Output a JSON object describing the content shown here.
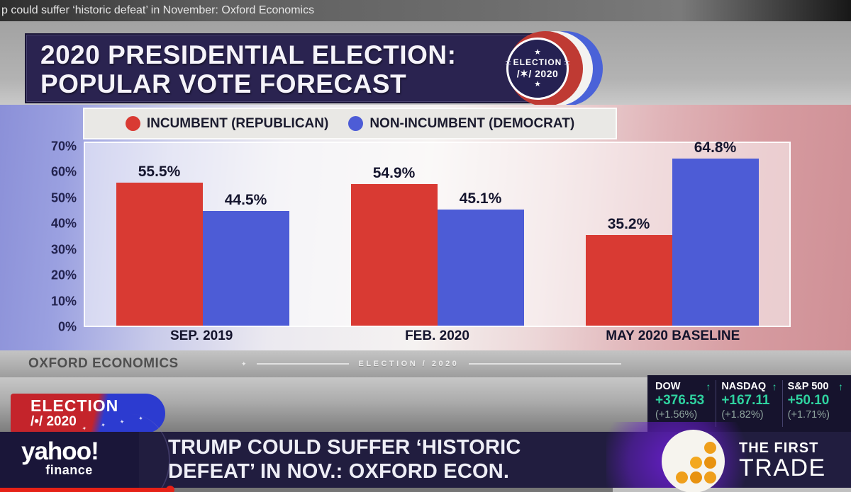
{
  "video": {
    "title_bar_text": "p could suffer ‘historic defeat’ in November: Oxford Economics",
    "progress": {
      "played_pct": 20,
      "unbuffered_right_pct": 28
    }
  },
  "header": {
    "title_line1": "2020 PRESIDENTIAL ELECTION:",
    "title_line2": "POPULAR VOTE FORECAST",
    "badge": {
      "star": "★",
      "line1": "ELECTION",
      "line2": "/✶/ 2020"
    }
  },
  "legend": [
    {
      "label": "INCUMBENT (REPUBLICAN)",
      "color": "#d93a33"
    },
    {
      "label": "NON-INCUMBENT (DEMOCRAT)",
      "color": "#4d5cd6"
    }
  ],
  "chart_data": {
    "type": "bar",
    "title": "2020 PRESIDENTIAL ELECTION: POPULAR VOTE FORECAST",
    "categories": [
      "SEP. 2019",
      "FEB. 2020",
      "MAY 2020 BASELINE"
    ],
    "series": [
      {
        "key": "incumbent-republican",
        "name": "INCUMBENT (REPUBLICAN)",
        "color": "#d93a33",
        "values": [
          55.5,
          54.9,
          35.2
        ]
      },
      {
        "key": "non-incumbent-democrat",
        "name": "NON-INCUMBENT (DEMOCRAT)",
        "color": "#4d5cd6",
        "values": [
          44.5,
          45.1,
          64.8
        ]
      }
    ],
    "ylim": [
      0,
      70
    ],
    "yticks": [
      70,
      60,
      50,
      40,
      30,
      20,
      10,
      0
    ],
    "ytick_suffix": "%",
    "value_label_suffix": "%",
    "grid": false,
    "legend_position": "top"
  },
  "source_strip": {
    "source": "OXFORD ECONOMICS",
    "watermark_star": "✦",
    "watermark": "ELECTION / 2020"
  },
  "ticker": {
    "up_arrow": "↑",
    "items": [
      {
        "name": "DOW",
        "change": "+376.53",
        "pct": "(+1.56%)",
        "direction": "up"
      },
      {
        "name": "NASDAQ",
        "change": "+167.11",
        "pct": "(+1.82%)",
        "direction": "up"
      },
      {
        "name": "S&P 500",
        "change": "+50.10",
        "pct": "(+1.71%)",
        "direction": "up"
      }
    ]
  },
  "election_pill": {
    "line1": "ELECTION",
    "line2": "/•/ 2020",
    "stars": "✦ ✦ ✦ ✦"
  },
  "chyron": {
    "brand_line1": "yahoo!",
    "brand_line2": "finance",
    "headline_line1": "TRUMP COULD SUFFER ‘HISTORIC",
    "headline_line2": "DEFEAT’ IN NOV.: OXFORD ECON.",
    "show_line1": "THE FIRST",
    "show_line2": "TRADE"
  },
  "colors": {
    "republican_red": "#d93a33",
    "democrat_blue": "#4d5cd6",
    "ticker_green": "#2fd3a0",
    "progress_red": "#e62117",
    "glow_purple": "#681ecd",
    "logo_dot_orange": "#ef9f1b",
    "header_navy": "#2a2350",
    "chyron_navy": "#211d3f"
  }
}
